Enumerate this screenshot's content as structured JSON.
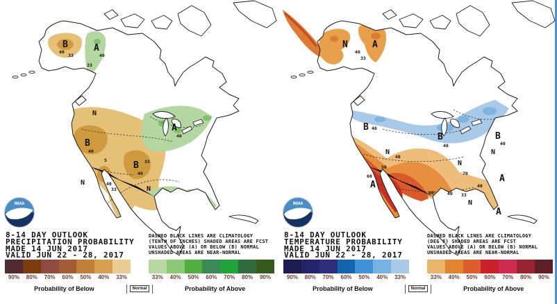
{
  "noaa_logo_text": "NOAA",
  "legend": {
    "percent_labels": [
      "90%",
      "80%",
      "70%",
      "60%",
      "50%",
      "40%",
      "33%",
      "",
      "33%",
      "40%",
      "50%",
      "60%",
      "70%",
      "80%",
      "90%"
    ],
    "below_label": "Probability of Below",
    "normal_label": "Normal",
    "above_label": "Probability of Above"
  },
  "panels": [
    {
      "id": "precipitation-outlook",
      "title_block": "8-14 DAY OUTLOOK\nPRECIPITATION PROBABILITY\nMADE  14 JUN 2017\nVALID  JUN 22 - 28, 2017",
      "annotation": "DASHED BLACK LINES ARE CLIMATOLOGY\n(TENTH OF INCHES) SHADED AREAS ARE FCST\nVALUES ABOVE (A) OR BELOW (B) NORMAL\nUNSHADED AREAS ARE NEAR-NORMAL",
      "colorbar_colors": [
        "#4f2a33",
        "#7d3c10",
        "#8f4a42",
        "#a35b35",
        "#c07e38",
        "#d5a050",
        "#e9cd92",
        "#ffffff",
        "#b6d7a4",
        "#8bc878",
        "#51ae41",
        "#3b8a55",
        "#22a33c",
        "#2e6b3d",
        "#36591c"
      ],
      "region_colors": {
        "light": "#e7c077",
        "dark": "#cf9a3e",
        "green_light": "#b4d7a2",
        "green_dark": "#7fc06b"
      },
      "map_labels": [
        {
          "t": "B"
        },
        {
          "t": "40"
        },
        {
          "t": "33"
        },
        {
          "t": "A"
        },
        {
          "t": "40"
        },
        {
          "t": "33"
        },
        {
          "t": "N"
        },
        {
          "t": "B"
        },
        {
          "t": "40"
        },
        {
          "t": "B"
        },
        {
          "t": "40"
        },
        {
          "t": "N"
        },
        {
          "t": "N"
        },
        {
          "t": "40"
        },
        {
          "t": "33"
        },
        {
          "t": "A"
        },
        {
          "t": "40"
        },
        {
          "t": "33"
        },
        {
          "t": "5"
        }
      ]
    },
    {
      "id": "temperature-outlook",
      "title_block": "8-14 DAY OUTLOOK\nTEMPERATURE PROBABILITY\nMADE  14 JUN 2017\nVALID  JUN 22 - 28, 2017",
      "annotation": "DASHED BLACK LINES ARE CLIMATOLOGY\n(DEG F) SHADED AREAS ARE FCST\nVALUES ABOVE (A) OR BELOW (B) NORMAL\nUNSHADED AREAS ARE NEAR-NORMAL",
      "colorbar_colors": [
        "#1c1b50",
        "#24246a",
        "#2d2d7e",
        "#1465b0",
        "#3f93d6",
        "#77b3e2",
        "#aacaea",
        "#ffffff",
        "#e7b569",
        "#df8530",
        "#dd5c2b",
        "#ca2027",
        "#ce2b51",
        "#99242f",
        "#5f1f29"
      ],
      "region_colors": {
        "blue": "#a9c9e8",
        "blue_dark": "#7fb2dd",
        "tan": "#eebd7b",
        "orange": "#e78f3e",
        "red_orange": "#da5a2b",
        "red": "#c92f23",
        "ak_orange": "#e8a04b",
        "ak_dark": "#d97e2f",
        "streak": "#dd7a33"
      },
      "map_labels": [
        {
          "t": "N"
        },
        {
          "t": "A"
        },
        {
          "t": "40"
        },
        {
          "t": "33"
        },
        {
          "t": "B"
        },
        {
          "t": "40"
        },
        {
          "t": "B"
        },
        {
          "t": "40"
        },
        {
          "t": "B"
        },
        {
          "t": "40"
        },
        {
          "t": "N"
        },
        {
          "t": "N"
        },
        {
          "t": "N"
        },
        {
          "t": "A"
        },
        {
          "t": "40"
        },
        {
          "t": "50"
        },
        {
          "t": "60"
        },
        {
          "t": "60"
        },
        {
          "t": "40"
        },
        {
          "t": "33"
        },
        {
          "t": "40"
        },
        {
          "t": "A"
        },
        {
          "t": "A"
        },
        {
          "t": "70"
        },
        {
          "t": "N"
        }
      ]
    }
  ]
}
